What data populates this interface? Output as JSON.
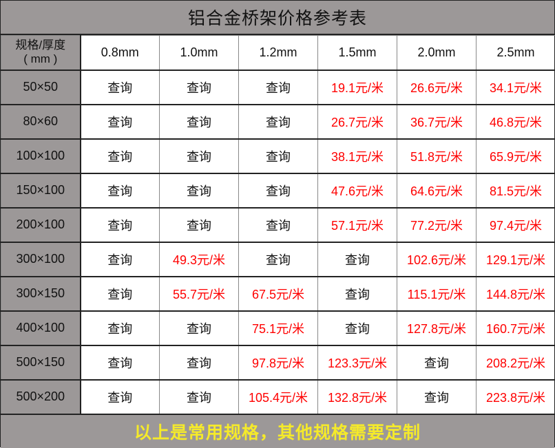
{
  "title": "铝合金桥架价格参考表",
  "corner_label": [
    "规格/厚度",
    "( mm )"
  ],
  "columns": [
    "0.8mm",
    "1.0mm",
    "1.2mm",
    "1.5mm",
    "2.0mm",
    "2.5mm"
  ],
  "rows": [
    {
      "spec": "50×50",
      "cells": [
        "查询",
        "查询",
        "查询",
        "19.1元/米",
        "26.6元/米",
        "34.1元/米"
      ]
    },
    {
      "spec": "80×60",
      "cells": [
        "查询",
        "查询",
        "查询",
        "26.7元/米",
        "36.7元/米",
        "46.8元/米"
      ]
    },
    {
      "spec": "100×100",
      "cells": [
        "查询",
        "查询",
        "查询",
        "38.1元/米",
        "51.8元/米",
        "65.9元/米"
      ]
    },
    {
      "spec": "150×100",
      "cells": [
        "查询",
        "查询",
        "查询",
        "47.6元/米",
        "64.6元/米",
        "81.5元/米"
      ]
    },
    {
      "spec": "200×100",
      "cells": [
        "查询",
        "查询",
        "查询",
        "57.1元/米",
        "77.2元/米",
        "97.4元/米"
      ]
    },
    {
      "spec": "300×100",
      "cells": [
        "查询",
        "49.3元/米",
        "查询",
        "查询",
        "102.6元/米",
        "129.1元/米"
      ]
    },
    {
      "spec": "300×150",
      "cells": [
        "查询",
        "55.7元/米",
        "67.5元/米",
        "查询",
        "115.1元/米",
        "144.8元/米"
      ]
    },
    {
      "spec": "400×100",
      "cells": [
        "查询",
        "查询",
        "75.1元/米",
        "查询",
        "127.8元/米",
        "160.7元/米"
      ]
    },
    {
      "spec": "500×150",
      "cells": [
        "查询",
        "查询",
        "97.8元/米",
        "123.3元/米",
        "查询",
        "208.2元/米"
      ]
    },
    {
      "spec": "500×200",
      "cells": [
        "查询",
        "查询",
        "105.4元/米",
        "132.8元/米",
        "查询",
        "223.8元/米"
      ]
    }
  ],
  "footer": "以上是常用规格，其他规格需要定制",
  "colors": {
    "header_bg": "#9c9898",
    "price": "#ff0000",
    "footer_text": "#f5ea2a"
  }
}
